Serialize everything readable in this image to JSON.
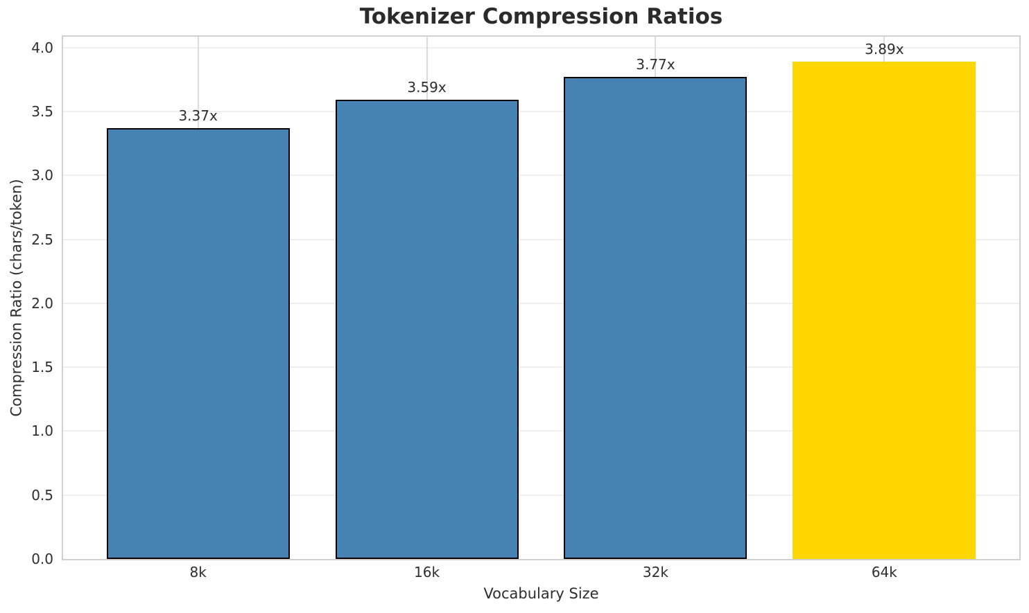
{
  "chart_data": {
    "type": "bar",
    "title": "Tokenizer Compression Ratios",
    "xlabel": "Vocabulary Size",
    "ylabel": "Compression Ratio (chars/token)",
    "categories": [
      "8k",
      "16k",
      "32k",
      "64k"
    ],
    "values": [
      3.37,
      3.59,
      3.77,
      3.89
    ],
    "value_labels": [
      "3.37x",
      "3.59x",
      "3.77x",
      "3.89x"
    ],
    "bar_colors": [
      "#4682B4",
      "#4682B4",
      "#4682B4",
      "#FFD700"
    ],
    "bar_has_edge": [
      true,
      true,
      true,
      false
    ],
    "highlight_index": 3,
    "ylim": [
      0,
      4.085
    ],
    "yticks": [
      0,
      0.5,
      1,
      1.5,
      2,
      2.5,
      3,
      3.5,
      4
    ],
    "ytick_labels": [
      "0.0",
      "0.5",
      "1.0",
      "1.5",
      "2.0",
      "2.5",
      "3.0",
      "3.5",
      "4.0"
    ],
    "grid": "both",
    "legend": "none",
    "colors": {
      "bar_default": "#4682B4",
      "bar_highlight": "#FFD700",
      "bar_edge": "#000000",
      "grid_horizontal": "#efefef",
      "grid_vertical": "#dcdcdc",
      "axes_edge": "#d0d0d0",
      "text": "#2b2b2b"
    }
  }
}
